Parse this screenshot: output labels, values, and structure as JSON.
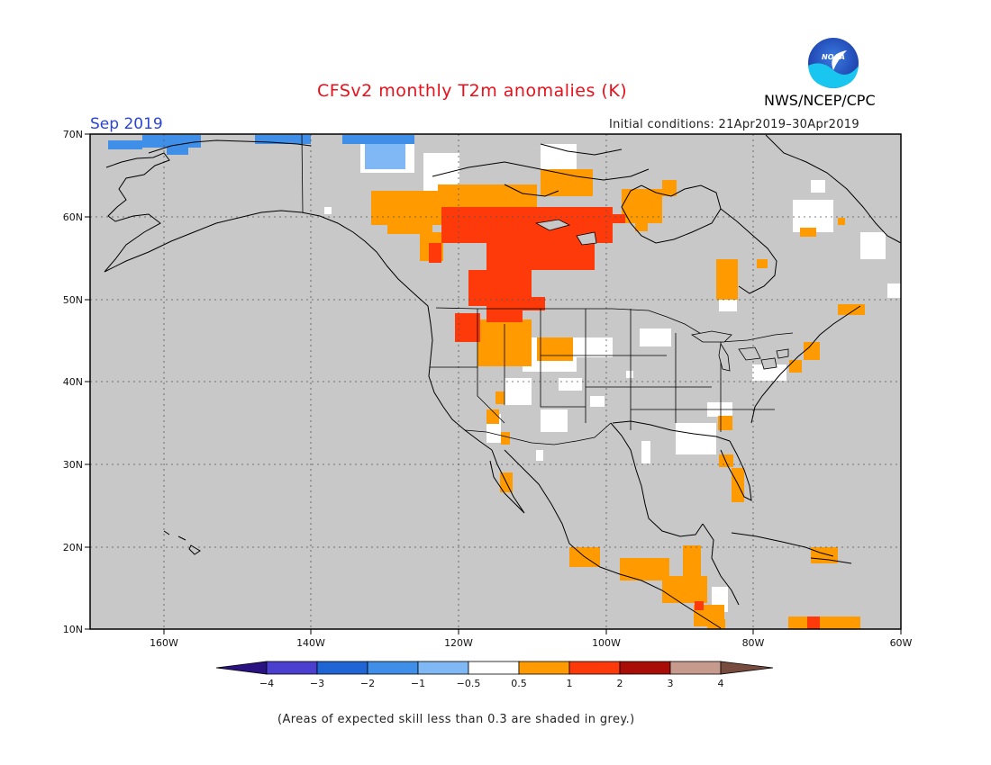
{
  "title": "CFSv2 monthly T2m anomalies (K)",
  "agency": "NWS/NCEP/CPC",
  "logo_text": "NOAA",
  "target_month": "Sep 2019",
  "initial_conditions": "Initial conditions: 21Apr2019–30Apr2019",
  "footnote": "(Areas of expected skill less than 0.3 are shaded in grey.)",
  "lat_labels": [
    "70N",
    "60N",
    "50N",
    "40N",
    "30N",
    "20N",
    "10N"
  ],
  "lon_labels": [
    "160W",
    "140W",
    "120W",
    "100W",
    "80W",
    "60W"
  ],
  "colorbar": {
    "tick_labels": [
      "−4",
      "−3",
      "−2",
      "−1",
      "−0.5",
      "0.5",
      "1",
      "2",
      "3",
      "4"
    ],
    "colors": [
      "#2a1380",
      "#4a3fcf",
      "#1f66d4",
      "#3f8ee8",
      "#7fb8f4",
      "#ffffff",
      "#ff9b00",
      "#ff3a0a",
      "#a80d08",
      "#c79a8e",
      "#774b3e"
    ]
  },
  "colors": {
    "skill_grey": "#c8c8c8",
    "neutral": "#ffffff",
    "warm_light": "#ff9b00",
    "warm_mid": "#ff3a0a",
    "cool_light": "#7fb8f4",
    "cool_mid": "#3f8ee8"
  }
}
